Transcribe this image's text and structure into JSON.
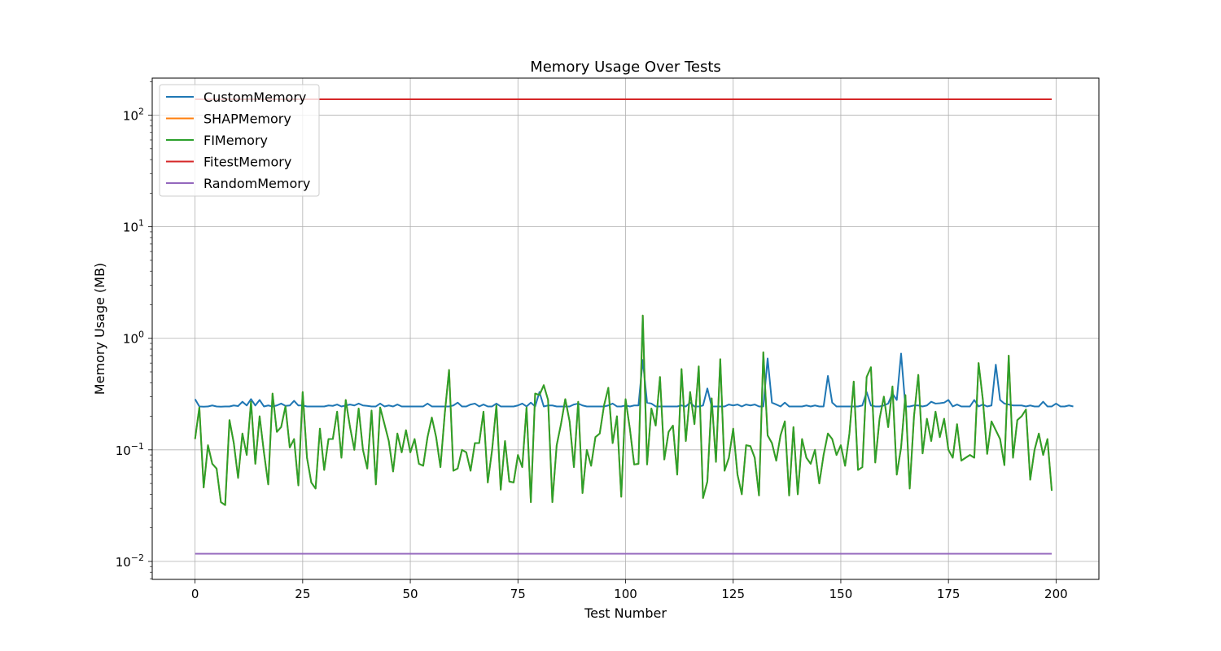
{
  "chart_data": {
    "type": "line",
    "title": "Memory Usage Over Tests",
    "xlabel": "Test Number",
    "ylabel": "Memory Usage (MB)",
    "xlim": [
      -9.95,
      209.95
    ],
    "ylim": [
      0.0069,
      215
    ],
    "yscale": "log",
    "grid": true,
    "legend_position": "top-left",
    "x_ticks": [
      0,
      25,
      50,
      75,
      100,
      125,
      150,
      175,
      200
    ],
    "x_tick_labels": [
      "0",
      "25",
      "50",
      "75",
      "100",
      "125",
      "150",
      "175",
      "200"
    ],
    "y_ticks": [
      0.01,
      0.1,
      1,
      10,
      100
    ],
    "y_tick_labels": [
      {
        "base": "10",
        "exp": "−2"
      },
      {
        "base": "10",
        "exp": "−1"
      },
      {
        "base": "10",
        "exp": "0"
      },
      {
        "base": "10",
        "exp": "1"
      },
      {
        "base": "10",
        "exp": "2"
      }
    ],
    "series": [
      {
        "name": "CustomMemory",
        "color": "#1f77b4",
        "x_start": 0,
        "x_step": 1,
        "values": [
          0.285,
          0.245,
          0.244,
          0.245,
          0.25,
          0.245,
          0.244,
          0.245,
          0.245,
          0.25,
          0.247,
          0.27,
          0.25,
          0.285,
          0.25,
          0.28,
          0.245,
          0.25,
          0.245,
          0.25,
          0.26,
          0.248,
          0.25,
          0.275,
          0.25,
          0.25,
          0.245,
          0.245,
          0.245,
          0.245,
          0.245,
          0.25,
          0.248,
          0.255,
          0.245,
          0.25,
          0.255,
          0.25,
          0.26,
          0.25,
          0.248,
          0.245,
          0.245,
          0.26,
          0.245,
          0.25,
          0.245,
          0.255,
          0.245,
          0.245,
          0.245,
          0.245,
          0.245,
          0.245,
          0.26,
          0.245,
          0.245,
          0.245,
          0.245,
          0.245,
          0.25,
          0.265,
          0.245,
          0.245,
          0.255,
          0.26,
          0.245,
          0.255,
          0.245,
          0.245,
          0.26,
          0.245,
          0.245,
          0.245,
          0.245,
          0.25,
          0.26,
          0.245,
          0.265,
          0.245,
          0.33,
          0.245,
          0.25,
          0.25,
          0.245,
          0.245,
          0.245,
          0.245,
          0.255,
          0.26,
          0.25,
          0.245,
          0.245,
          0.245,
          0.245,
          0.245,
          0.25,
          0.26,
          0.245,
          0.245,
          0.25,
          0.245,
          0.25,
          0.25,
          0.64,
          0.265,
          0.26,
          0.245,
          0.245,
          0.245,
          0.245,
          0.245,
          0.245,
          0.25,
          0.245,
          0.265,
          0.245,
          0.245,
          0.25,
          0.355,
          0.245,
          0.245,
          0.245,
          0.245,
          0.255,
          0.25,
          0.255,
          0.245,
          0.255,
          0.25,
          0.255,
          0.245,
          0.245,
          0.66,
          0.265,
          0.255,
          0.245,
          0.265,
          0.245,
          0.245,
          0.245,
          0.245,
          0.25,
          0.245,
          0.25,
          0.245,
          0.245,
          0.46,
          0.265,
          0.245,
          0.245,
          0.245,
          0.245,
          0.245,
          0.245,
          0.25,
          0.33,
          0.25,
          0.245,
          0.245,
          0.25,
          0.26,
          0.32,
          0.28,
          0.73,
          0.245,
          0.245,
          0.25,
          0.25,
          0.245,
          0.25,
          0.27,
          0.26,
          0.262,
          0.265,
          0.28,
          0.245,
          0.255,
          0.245,
          0.245,
          0.245,
          0.28,
          0.245,
          0.255,
          0.245,
          0.25,
          0.58,
          0.28,
          0.26,
          0.255,
          0.25,
          0.25,
          0.25,
          0.245,
          0.25,
          0.245,
          0.245,
          0.27,
          0.245,
          0.245,
          0.26,
          0.245,
          0.245,
          0.25,
          0.245
        ]
      },
      {
        "name": "SHAPMemory",
        "color": "#ff7f0e",
        "x_start": 0,
        "x_step": 1,
        "values": [
          0.125,
          0.24,
          0.046,
          0.11,
          0.075,
          0.068,
          0.034,
          0.032,
          0.185,
          0.115,
          0.056,
          0.14,
          0.09,
          0.27,
          0.075,
          0.2,
          0.095,
          0.049,
          0.32,
          0.145,
          0.16,
          0.245,
          0.105,
          0.125,
          0.048,
          0.33,
          0.085,
          0.051,
          0.045,
          0.155,
          0.066,
          0.125,
          0.125,
          0.22,
          0.085,
          0.28,
          0.16,
          0.1,
          0.235,
          0.1,
          0.068,
          0.225,
          0.049,
          0.24,
          0.17,
          0.12,
          0.064,
          0.14,
          0.095,
          0.15,
          0.095,
          0.125,
          0.075,
          0.072,
          0.13,
          0.195,
          0.13,
          0.07,
          0.21,
          0.52,
          0.065,
          0.068,
          0.1,
          0.095,
          0.065,
          0.115,
          0.115,
          0.22,
          0.051,
          0.1,
          0.25,
          0.044,
          0.12,
          0.052,
          0.051,
          0.09,
          0.07,
          0.24,
          0.034,
          0.32,
          0.31,
          0.38,
          0.28,
          0.034,
          0.11,
          0.17,
          0.285,
          0.18,
          0.07,
          0.27,
          0.041,
          0.1,
          0.072,
          0.13,
          0.14,
          0.25,
          0.36,
          0.115,
          0.2,
          0.038,
          0.285,
          0.155,
          0.074,
          0.075,
          1.6,
          0.074,
          0.235,
          0.165,
          0.45,
          0.082,
          0.145,
          0.165,
          0.06,
          0.53,
          0.12,
          0.33,
          0.17,
          0.56,
          0.037,
          0.052,
          0.29,
          0.078,
          0.65,
          0.065,
          0.085,
          0.155,
          0.06,
          0.04,
          0.11,
          0.108,
          0.085,
          0.039,
          0.75,
          0.135,
          0.115,
          0.08,
          0.135,
          0.18,
          0.039,
          0.16,
          0.04,
          0.125,
          0.085,
          0.075,
          0.1,
          0.05,
          0.09,
          0.14,
          0.125,
          0.09,
          0.11,
          0.072,
          0.14,
          0.41,
          0.066,
          0.07,
          0.45,
          0.55,
          0.077,
          0.19,
          0.3,
          0.16,
          0.37,
          0.06,
          0.105,
          0.31,
          0.045,
          0.2,
          0.47,
          0.093,
          0.19,
          0.12,
          0.22,
          0.13,
          0.19,
          0.1,
          0.085,
          0.17,
          0.08,
          0.085,
          0.09,
          0.085,
          0.6,
          0.28,
          0.092,
          0.18,
          0.15,
          0.125,
          0.073,
          0.7,
          0.085,
          0.185,
          0.2,
          0.23,
          0.054,
          0.1,
          0.14,
          0.09,
          0.125,
          0.043
        ]
      },
      {
        "name": "FIMemory",
        "color": "#2ca02c",
        "x_start": 0,
        "x_step": 1,
        "values": [
          0.125,
          0.24,
          0.046,
          0.11,
          0.075,
          0.068,
          0.034,
          0.032,
          0.185,
          0.115,
          0.056,
          0.14,
          0.09,
          0.27,
          0.075,
          0.2,
          0.095,
          0.049,
          0.32,
          0.145,
          0.16,
          0.245,
          0.105,
          0.125,
          0.048,
          0.33,
          0.085,
          0.051,
          0.045,
          0.155,
          0.066,
          0.125,
          0.125,
          0.22,
          0.085,
          0.28,
          0.16,
          0.1,
          0.235,
          0.1,
          0.068,
          0.225,
          0.049,
          0.24,
          0.17,
          0.12,
          0.064,
          0.14,
          0.095,
          0.15,
          0.095,
          0.125,
          0.075,
          0.072,
          0.13,
          0.195,
          0.13,
          0.07,
          0.21,
          0.52,
          0.065,
          0.068,
          0.1,
          0.095,
          0.065,
          0.115,
          0.115,
          0.22,
          0.051,
          0.1,
          0.25,
          0.044,
          0.12,
          0.052,
          0.051,
          0.09,
          0.07,
          0.24,
          0.034,
          0.32,
          0.31,
          0.38,
          0.28,
          0.034,
          0.11,
          0.17,
          0.285,
          0.18,
          0.07,
          0.27,
          0.041,
          0.1,
          0.072,
          0.13,
          0.14,
          0.25,
          0.36,
          0.115,
          0.2,
          0.038,
          0.285,
          0.155,
          0.074,
          0.075,
          1.6,
          0.074,
          0.235,
          0.165,
          0.45,
          0.082,
          0.145,
          0.165,
          0.06,
          0.53,
          0.12,
          0.33,
          0.17,
          0.56,
          0.037,
          0.052,
          0.29,
          0.078,
          0.65,
          0.065,
          0.085,
          0.155,
          0.06,
          0.04,
          0.11,
          0.108,
          0.085,
          0.039,
          0.75,
          0.135,
          0.115,
          0.08,
          0.135,
          0.18,
          0.039,
          0.16,
          0.04,
          0.125,
          0.085,
          0.075,
          0.1,
          0.05,
          0.09,
          0.14,
          0.125,
          0.09,
          0.11,
          0.072,
          0.14,
          0.41,
          0.066,
          0.07,
          0.45,
          0.55,
          0.077,
          0.19,
          0.3,
          0.16,
          0.37,
          0.06,
          0.105,
          0.31,
          0.045,
          0.2,
          0.47,
          0.093,
          0.19,
          0.12,
          0.22,
          0.13,
          0.19,
          0.1,
          0.085,
          0.17,
          0.08,
          0.085,
          0.09,
          0.085,
          0.6,
          0.28,
          0.092,
          0.18,
          0.15,
          0.125,
          0.073,
          0.7,
          0.085,
          0.185,
          0.2,
          0.23,
          0.054,
          0.1,
          0.14,
          0.09,
          0.125,
          0.043
        ]
      },
      {
        "name": "FitestMemory",
        "color": "#d62728",
        "x_start": 0,
        "x_step": 1,
        "constant": 139,
        "count": 200
      },
      {
        "name": "RandomMemory",
        "color": "#9467bd",
        "x_start": 0,
        "x_step": 1,
        "constant": 0.0117,
        "count": 200
      }
    ]
  }
}
